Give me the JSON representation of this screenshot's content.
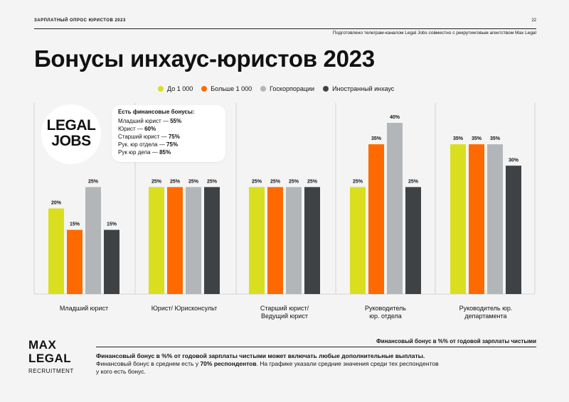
{
  "header": {
    "left": "ЗАРПЛАТНЫЙ ОПРОС ЮРИСТОВ 2023",
    "page_number": "22",
    "subline": "Подготовлено телеграм-каналом Legal Jobs совместно с рекрутинговым агентством Max Legal"
  },
  "title": "Бонусы инхаус-юристов 2023",
  "logo": {
    "line1": "LEGAL",
    "line2": "JOBS"
  },
  "info": {
    "title": "Есть финансовые бонусы:",
    "items": [
      {
        "label": "Младший юрист — ",
        "value": "55%"
      },
      {
        "label": "Юрист — ",
        "value": "60%"
      },
      {
        "label": "Старший юрист — ",
        "value": "75%"
      },
      {
        "label": "Рук. юр отдела — ",
        "value": "75%"
      },
      {
        "label": "Рук юр депа — ",
        "value": "85%"
      }
    ]
  },
  "colors": {
    "series_1": "#d9df1f",
    "series_2": "#ff6a00",
    "series_3": "#b3b6b8",
    "series_4": "#3f4245",
    "grid": "#d3d3d3"
  },
  "chart_data": {
    "type": "bar",
    "ylim": [
      0,
      50
    ],
    "categories": [
      "Младший юрист",
      "Юрист/ Юрисконсульт",
      "Старший юрист/ Ведущий юрист",
      "Руководитель юр. отдела",
      "Руководитель юр. департамента"
    ],
    "category_lines": [
      [
        "Младший юрист"
      ],
      [
        "Юрист/ Юрисконсульт"
      ],
      [
        "Старший юрист/",
        "Ведущий юрист"
      ],
      [
        "Руководитель",
        "юр. отдела"
      ],
      [
        "Руководитель юр.",
        "департамента"
      ]
    ],
    "series": [
      {
        "name": "До 1 000",
        "color": "#d9df1f",
        "values": [
          20,
          25,
          25,
          25,
          35
        ]
      },
      {
        "name": "Больше 1 000",
        "color": "#ff6a00",
        "values": [
          15,
          25,
          25,
          35,
          35
        ]
      },
      {
        "name": "Госкорпорации",
        "color": "#b3b6b8",
        "values": [
          25,
          25,
          25,
          40,
          35
        ]
      },
      {
        "name": "Иностранный инхаус",
        "color": "#3f4245",
        "values": [
          15,
          25,
          25,
          25,
          30
        ]
      }
    ],
    "value_suffix": "%"
  },
  "footer": {
    "right_caption": "Финансовый бонус в %% от годовой зарплаты чистыми",
    "brand_line1": "MAX",
    "brand_line2": "LEGAL",
    "brand_sub": "RECRUITMENT",
    "note_line1": "Финансовый бонус в %% от годовой зарплаты чистыми может включать любые дополнительные выплаты.",
    "note_line2_a": "Финансовый бонус в среднем есть у ",
    "note_line2_b": "70% респондентов",
    "note_line2_c": ". На графике указали средние значения среди тех респондентов",
    "note_line3": "у кого есть бонус."
  }
}
